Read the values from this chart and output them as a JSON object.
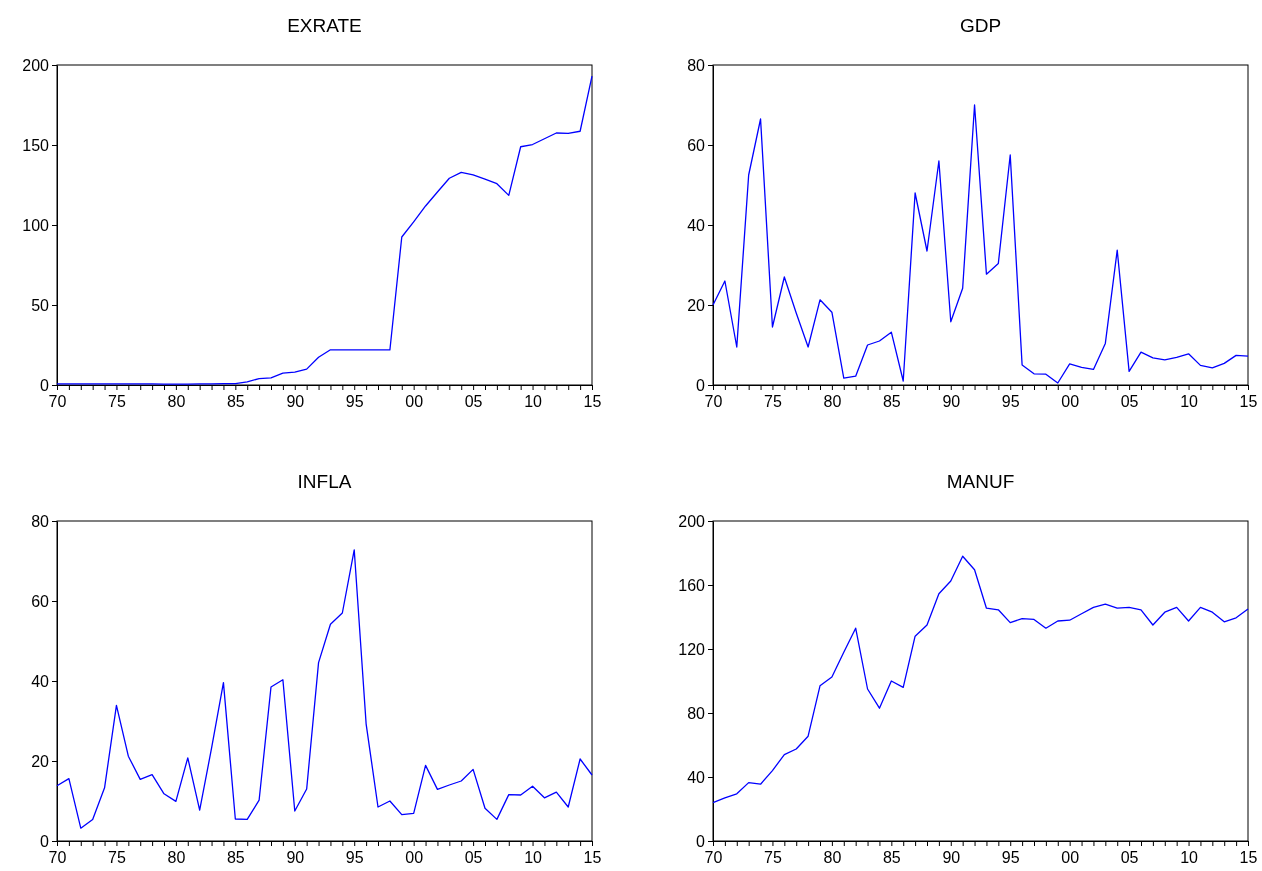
{
  "chart_data": [
    {
      "type": "line",
      "title": "EXRATE",
      "color": "#0000ff",
      "x": [
        1970,
        1971,
        1972,
        1973,
        1974,
        1975,
        1976,
        1977,
        1978,
        1979,
        1980,
        1981,
        1982,
        1983,
        1984,
        1985,
        1986,
        1987,
        1988,
        1989,
        1990,
        1991,
        1992,
        1993,
        1994,
        1995,
        1996,
        1997,
        1998,
        1999,
        2000,
        2001,
        2002,
        2003,
        2004,
        2005,
        2006,
        2007,
        2008,
        2009,
        2010,
        2011,
        2012,
        2013,
        2014,
        2015
      ],
      "values": [
        0.7,
        0.7,
        0.7,
        0.7,
        0.7,
        0.7,
        0.7,
        0.7,
        0.7,
        0.6,
        0.5,
        0.6,
        0.7,
        0.7,
        0.8,
        0.9,
        2,
        4,
        4.5,
        7.4,
        8,
        9.9,
        17.3,
        22,
        21.9,
        21.9,
        21.9,
        21.9,
        21.9,
        92.5,
        102,
        111.9,
        120.6,
        129.2,
        132.9,
        131.3,
        128.7,
        125.8,
        118.5,
        148.9,
        150.3,
        153.9,
        157.5,
        157.3,
        158.6,
        193
      ],
      "xlim": [
        1970,
        2015
      ],
      "ylim": [
        0,
        200
      ],
      "yticks": [
        0,
        50,
        100,
        150,
        200
      ],
      "xticks": [
        {
          "value": 1970,
          "label": "70"
        },
        {
          "value": 1971,
          "label": null
        },
        {
          "value": 1972,
          "label": null
        },
        {
          "value": 1973,
          "label": null
        },
        {
          "value": 1974,
          "label": null
        },
        {
          "value": 1975,
          "label": "75"
        },
        {
          "value": 1976,
          "label": null
        },
        {
          "value": 1977,
          "label": null
        },
        {
          "value": 1978,
          "label": null
        },
        {
          "value": 1979,
          "label": null
        },
        {
          "value": 1980,
          "label": "80"
        },
        {
          "value": 1981,
          "label": null
        },
        {
          "value": 1982,
          "label": null
        },
        {
          "value": 1983,
          "label": null
        },
        {
          "value": 1984,
          "label": null
        },
        {
          "value": 1985,
          "label": "85"
        },
        {
          "value": 1986,
          "label": null
        },
        {
          "value": 1987,
          "label": null
        },
        {
          "value": 1988,
          "label": null
        },
        {
          "value": 1989,
          "label": null
        },
        {
          "value": 1990,
          "label": "90"
        },
        {
          "value": 1991,
          "label": null
        },
        {
          "value": 1992,
          "label": null
        },
        {
          "value": 1993,
          "label": null
        },
        {
          "value": 1994,
          "label": null
        },
        {
          "value": 1995,
          "label": "95"
        },
        {
          "value": 1996,
          "label": null
        },
        {
          "value": 1997,
          "label": null
        },
        {
          "value": 1998,
          "label": null
        },
        {
          "value": 1999,
          "label": null
        },
        {
          "value": 2000,
          "label": "00"
        },
        {
          "value": 2001,
          "label": null
        },
        {
          "value": 2002,
          "label": null
        },
        {
          "value": 2003,
          "label": null
        },
        {
          "value": 2004,
          "label": null
        },
        {
          "value": 2005,
          "label": "05"
        },
        {
          "value": 2006,
          "label": null
        },
        {
          "value": 2007,
          "label": null
        },
        {
          "value": 2008,
          "label": null
        },
        {
          "value": 2009,
          "label": null
        },
        {
          "value": 2010,
          "label": "10"
        },
        {
          "value": 2011,
          "label": null
        },
        {
          "value": 2012,
          "label": null
        },
        {
          "value": 2013,
          "label": null
        },
        {
          "value": 2014,
          "label": null
        },
        {
          "value": 2015,
          "label": "15"
        }
      ]
    },
    {
      "type": "line",
      "title": "GDP",
      "color": "#0000ff",
      "x": [
        1970,
        1971,
        1972,
        1973,
        1974,
        1975,
        1976,
        1977,
        1978,
        1979,
        1980,
        1981,
        1982,
        1983,
        1984,
        1985,
        1986,
        1987,
        1988,
        1989,
        1990,
        1991,
        1992,
        1993,
        1994,
        1995,
        1996,
        1997,
        1998,
        1999,
        2000,
        2001,
        2002,
        2003,
        2004,
        2005,
        2006,
        2007,
        2008,
        2009,
        2010,
        2011,
        2012,
        2013,
        2014,
        2015
      ],
      "values": [
        20,
        26,
        9.5,
        52.5,
        66.5,
        14.5,
        27,
        18,
        9.5,
        21.3,
        18.2,
        1.7,
        2.2,
        10,
        11,
        13.2,
        1,
        48,
        33.5,
        56,
        15.8,
        24.2,
        70,
        27.7,
        30.4,
        57.5,
        5,
        2.8,
        2.7,
        0.5,
        5.3,
        4.4,
        3.9,
        10.4,
        33.7,
        3.4,
        8.2,
        6.8,
        6.3,
        6.9,
        7.8,
        4.9,
        4.3,
        5.4,
        7.4,
        7.2
      ],
      "xlim": [
        1970,
        2015
      ],
      "ylim": [
        0,
        80
      ],
      "yticks": [
        0,
        20,
        40,
        60,
        80
      ],
      "xticks": [
        {
          "value": 1970,
          "label": "70"
        },
        {
          "value": 1971,
          "label": null
        },
        {
          "value": 1972,
          "label": null
        },
        {
          "value": 1973,
          "label": null
        },
        {
          "value": 1974,
          "label": null
        },
        {
          "value": 1975,
          "label": "75"
        },
        {
          "value": 1976,
          "label": null
        },
        {
          "value": 1977,
          "label": null
        },
        {
          "value": 1978,
          "label": null
        },
        {
          "value": 1979,
          "label": null
        },
        {
          "value": 1980,
          "label": "80"
        },
        {
          "value": 1981,
          "label": null
        },
        {
          "value": 1982,
          "label": null
        },
        {
          "value": 1983,
          "label": null
        },
        {
          "value": 1984,
          "label": null
        },
        {
          "value": 1985,
          "label": "85"
        },
        {
          "value": 1986,
          "label": null
        },
        {
          "value": 1987,
          "label": null
        },
        {
          "value": 1988,
          "label": null
        },
        {
          "value": 1989,
          "label": null
        },
        {
          "value": 1990,
          "label": "90"
        },
        {
          "value": 1991,
          "label": null
        },
        {
          "value": 1992,
          "label": null
        },
        {
          "value": 1993,
          "label": null
        },
        {
          "value": 1994,
          "label": null
        },
        {
          "value": 1995,
          "label": "95"
        },
        {
          "value": 1996,
          "label": null
        },
        {
          "value": 1997,
          "label": null
        },
        {
          "value": 1998,
          "label": null
        },
        {
          "value": 1999,
          "label": null
        },
        {
          "value": 2000,
          "label": "00"
        },
        {
          "value": 2001,
          "label": null
        },
        {
          "value": 2002,
          "label": null
        },
        {
          "value": 2003,
          "label": null
        },
        {
          "value": 2004,
          "label": null
        },
        {
          "value": 2005,
          "label": "05"
        },
        {
          "value": 2006,
          "label": null
        },
        {
          "value": 2007,
          "label": null
        },
        {
          "value": 2008,
          "label": null
        },
        {
          "value": 2009,
          "label": null
        },
        {
          "value": 2010,
          "label": "10"
        },
        {
          "value": 2011,
          "label": null
        },
        {
          "value": 2012,
          "label": null
        },
        {
          "value": 2013,
          "label": null
        },
        {
          "value": 2014,
          "label": null
        },
        {
          "value": 2015,
          "label": "15"
        }
      ]
    },
    {
      "type": "line",
      "title": "INFLA",
      "color": "#0000ff",
      "x": [
        1970,
        1971,
        1972,
        1973,
        1974,
        1975,
        1976,
        1977,
        1978,
        1979,
        1980,
        1981,
        1982,
        1983,
        1984,
        1985,
        1986,
        1987,
        1988,
        1989,
        1990,
        1991,
        1992,
        1993,
        1994,
        1995,
        1996,
        1997,
        1998,
        1999,
        2000,
        2001,
        2002,
        2003,
        2004,
        2005,
        2006,
        2007,
        2008,
        2009,
        2010,
        2011,
        2012,
        2013,
        2014,
        2015
      ],
      "values": [
        13.8,
        15.6,
        3.2,
        5.4,
        13.3,
        33.9,
        21.2,
        15.4,
        16.6,
        11.8,
        9.9,
        20.8,
        7.7,
        23.2,
        39.6,
        5.5,
        5.4,
        10.2,
        38.5,
        40.3,
        7.5,
        13,
        44.6,
        54.2,
        57,
        72.8,
        29.3,
        8.5,
        10,
        6.6,
        6.9,
        18.9,
        12.9,
        14,
        15,
        17.9,
        8.2,
        5.4,
        11.6,
        11.5,
        13.7,
        10.8,
        12.2,
        8.5,
        20.5,
        16.5
      ],
      "xlim": [
        1970,
        2015
      ],
      "ylim": [
        0,
        80
      ],
      "yticks": [
        0,
        20,
        40,
        60,
        80
      ],
      "xticks": [
        {
          "value": 1970,
          "label": "70"
        },
        {
          "value": 1971,
          "label": null
        },
        {
          "value": 1972,
          "label": null
        },
        {
          "value": 1973,
          "label": null
        },
        {
          "value": 1974,
          "label": null
        },
        {
          "value": 1975,
          "label": "75"
        },
        {
          "value": 1976,
          "label": null
        },
        {
          "value": 1977,
          "label": null
        },
        {
          "value": 1978,
          "label": null
        },
        {
          "value": 1979,
          "label": null
        },
        {
          "value": 1980,
          "label": "80"
        },
        {
          "value": 1981,
          "label": null
        },
        {
          "value": 1982,
          "label": null
        },
        {
          "value": 1983,
          "label": null
        },
        {
          "value": 1984,
          "label": null
        },
        {
          "value": 1985,
          "label": "85"
        },
        {
          "value": 1986,
          "label": null
        },
        {
          "value": 1987,
          "label": null
        },
        {
          "value": 1988,
          "label": null
        },
        {
          "value": 1989,
          "label": null
        },
        {
          "value": 1990,
          "label": "90"
        },
        {
          "value": 1991,
          "label": null
        },
        {
          "value": 1992,
          "label": null
        },
        {
          "value": 1993,
          "label": null
        },
        {
          "value": 1994,
          "label": null
        },
        {
          "value": 1995,
          "label": "95"
        },
        {
          "value": 1996,
          "label": null
        },
        {
          "value": 1997,
          "label": null
        },
        {
          "value": 1998,
          "label": null
        },
        {
          "value": 1999,
          "label": null
        },
        {
          "value": 2000,
          "label": "00"
        },
        {
          "value": 2001,
          "label": null
        },
        {
          "value": 2002,
          "label": null
        },
        {
          "value": 2003,
          "label": null
        },
        {
          "value": 2004,
          "label": null
        },
        {
          "value": 2005,
          "label": "05"
        },
        {
          "value": 2006,
          "label": null
        },
        {
          "value": 2007,
          "label": null
        },
        {
          "value": 2008,
          "label": null
        },
        {
          "value": 2009,
          "label": null
        },
        {
          "value": 2010,
          "label": "10"
        },
        {
          "value": 2011,
          "label": null
        },
        {
          "value": 2012,
          "label": null
        },
        {
          "value": 2013,
          "label": null
        },
        {
          "value": 2014,
          "label": null
        },
        {
          "value": 2015,
          "label": "15"
        }
      ]
    },
    {
      "type": "line",
      "title": "MANUF",
      "color": "#0000ff",
      "x": [
        1970,
        1971,
        1972,
        1973,
        1974,
        1975,
        1976,
        1977,
        1978,
        1979,
        1980,
        1981,
        1982,
        1983,
        1984,
        1985,
        1986,
        1987,
        1988,
        1989,
        1990,
        1991,
        1992,
        1993,
        1994,
        1995,
        1996,
        1997,
        1998,
        1999,
        2000,
        2001,
        2002,
        2003,
        2004,
        2005,
        2006,
        2007,
        2008,
        2009,
        2010,
        2011,
        2012,
        2013,
        2014,
        2015
      ],
      "values": [
        24,
        27,
        29.5,
        36.5,
        35.5,
        44,
        54,
        57.5,
        65.5,
        97,
        102.5,
        118,
        133,
        95,
        83,
        100,
        96,
        128,
        135,
        154.5,
        162.5,
        178,
        169.5,
        145.5,
        144.5,
        136.5,
        139,
        138.5,
        133,
        137.5,
        138,
        142,
        146,
        148,
        145.5,
        146,
        144.5,
        135,
        143,
        146,
        137.5,
        146,
        143,
        137,
        139.5,
        145
      ],
      "xlim": [
        1970,
        2015
      ],
      "ylim": [
        0,
        200
      ],
      "yticks": [
        0,
        40,
        80,
        120,
        160,
        200
      ],
      "xticks": [
        {
          "value": 1970,
          "label": "70"
        },
        {
          "value": 1971,
          "label": null
        },
        {
          "value": 1972,
          "label": null
        },
        {
          "value": 1973,
          "label": null
        },
        {
          "value": 1974,
          "label": null
        },
        {
          "value": 1975,
          "label": "75"
        },
        {
          "value": 1976,
          "label": null
        },
        {
          "value": 1977,
          "label": null
        },
        {
          "value": 1978,
          "label": null
        },
        {
          "value": 1979,
          "label": null
        },
        {
          "value": 1980,
          "label": "80"
        },
        {
          "value": 1981,
          "label": null
        },
        {
          "value": 1982,
          "label": null
        },
        {
          "value": 1983,
          "label": null
        },
        {
          "value": 1984,
          "label": null
        },
        {
          "value": 1985,
          "label": "85"
        },
        {
          "value": 1986,
          "label": null
        },
        {
          "value": 1987,
          "label": null
        },
        {
          "value": 1988,
          "label": null
        },
        {
          "value": 1989,
          "label": null
        },
        {
          "value": 1990,
          "label": "90"
        },
        {
          "value": 1991,
          "label": null
        },
        {
          "value": 1992,
          "label": null
        },
        {
          "value": 1993,
          "label": null
        },
        {
          "value": 1994,
          "label": null
        },
        {
          "value": 1995,
          "label": "95"
        },
        {
          "value": 1996,
          "label": null
        },
        {
          "value": 1997,
          "label": null
        },
        {
          "value": 1998,
          "label": null
        },
        {
          "value": 1999,
          "label": null
        },
        {
          "value": 2000,
          "label": "00"
        },
        {
          "value": 2001,
          "label": null
        },
        {
          "value": 2002,
          "label": null
        },
        {
          "value": 2003,
          "label": null
        },
        {
          "value": 2004,
          "label": null
        },
        {
          "value": 2005,
          "label": "05"
        },
        {
          "value": 2006,
          "label": null
        },
        {
          "value": 2007,
          "label": null
        },
        {
          "value": 2008,
          "label": null
        },
        {
          "value": 2009,
          "label": null
        },
        {
          "value": 2010,
          "label": "10"
        },
        {
          "value": 2011,
          "label": null
        },
        {
          "value": 2012,
          "label": null
        },
        {
          "value": 2013,
          "label": null
        },
        {
          "value": 2014,
          "label": null
        },
        {
          "value": 2015,
          "label": "15"
        }
      ]
    }
  ]
}
